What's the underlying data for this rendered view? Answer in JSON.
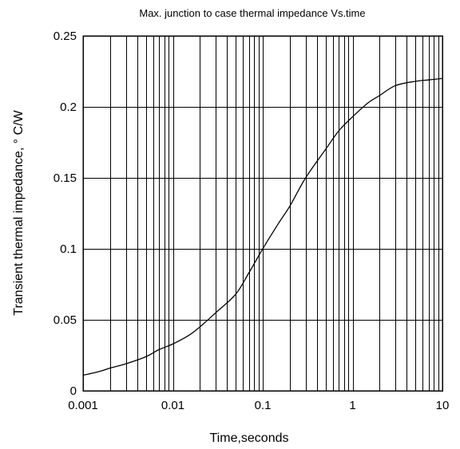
{
  "chart_data": {
    "type": "line",
    "title": "Max. junction to case thermal impedance Vs.time",
    "xlabel": "Time,seconds",
    "ylabel": "Transient thermal impedance, ° C/W",
    "x_scale": "log",
    "xlim": [
      0.001,
      10
    ],
    "ylim": [
      0,
      0.25
    ],
    "x_ticks": [
      "0.001",
      "0.01",
      "0.1",
      "1",
      "10"
    ],
    "y_ticks": [
      "0",
      "0.05",
      "0.1",
      "0.15",
      "0.2",
      "0.25"
    ],
    "grid": true,
    "legend": "none",
    "series": [
      {
        "x": [
          0.001,
          0.0015,
          0.002,
          0.003,
          0.005,
          0.007,
          0.01,
          0.015,
          0.02,
          0.03,
          0.05,
          0.07,
          0.1,
          0.15,
          0.2,
          0.3,
          0.5,
          0.7,
          1,
          1.5,
          2,
          3,
          5,
          7,
          10
        ],
        "y": [
          0.011,
          0.0135,
          0.016,
          0.019,
          0.024,
          0.029,
          0.033,
          0.039,
          0.045,
          0.055,
          0.068,
          0.083,
          0.1,
          0.118,
          0.13,
          0.15,
          0.17,
          0.183,
          0.193,
          0.203,
          0.208,
          0.215,
          0.218,
          0.219,
          0.22
        ]
      }
    ]
  }
}
